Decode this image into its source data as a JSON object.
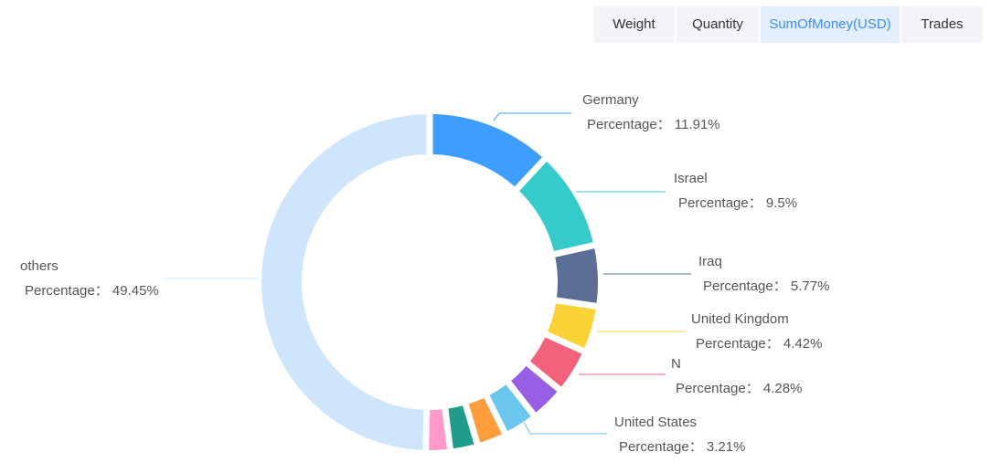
{
  "tabs": [
    {
      "label": "Weight",
      "active": false
    },
    {
      "label": "Quantity",
      "active": false
    },
    {
      "label": "SumOfMoney(USD)",
      "active": true
    },
    {
      "label": "Trades",
      "active": false
    }
  ],
  "chart_data": {
    "type": "pie",
    "subtype": "donut",
    "value_label": "Percentage",
    "slices": [
      {
        "name": "Germany",
        "value": 11.91,
        "label": "11.91%",
        "color": "#3d9eff",
        "labeled": true
      },
      {
        "name": "Israel",
        "value": 9.5,
        "label": "9.5%",
        "color": "#36cbcb",
        "labeled": true
      },
      {
        "name": "Iraq",
        "value": 5.77,
        "label": "5.77%",
        "color": "#5b6e96",
        "labeled": true
      },
      {
        "name": "United Kingdom",
        "value": 4.42,
        "label": "4.42%",
        "color": "#fad337",
        "labeled": true
      },
      {
        "name": "N",
        "value": 4.28,
        "label": "4.28%",
        "color": "#f2637b",
        "labeled": true
      },
      {
        "name": "",
        "value": 3.4,
        "color": "#975fe4",
        "labeled": false
      },
      {
        "name": "United States",
        "value": 3.21,
        "label": "3.21%",
        "color": "#6ac6ec",
        "labeled": true
      },
      {
        "name": "",
        "value": 2.8,
        "color": "#ff9d3c",
        "labeled": false
      },
      {
        "name": "",
        "value": 2.6,
        "color": "#1f9c8c",
        "labeled": false
      },
      {
        "name": "",
        "value": 2.3,
        "color": "#ff99c8",
        "labeled": false
      },
      {
        "name": "others",
        "value": 49.45,
        "label": "49.45%",
        "color": "#cfe5fc",
        "labeled": true
      }
    ]
  }
}
